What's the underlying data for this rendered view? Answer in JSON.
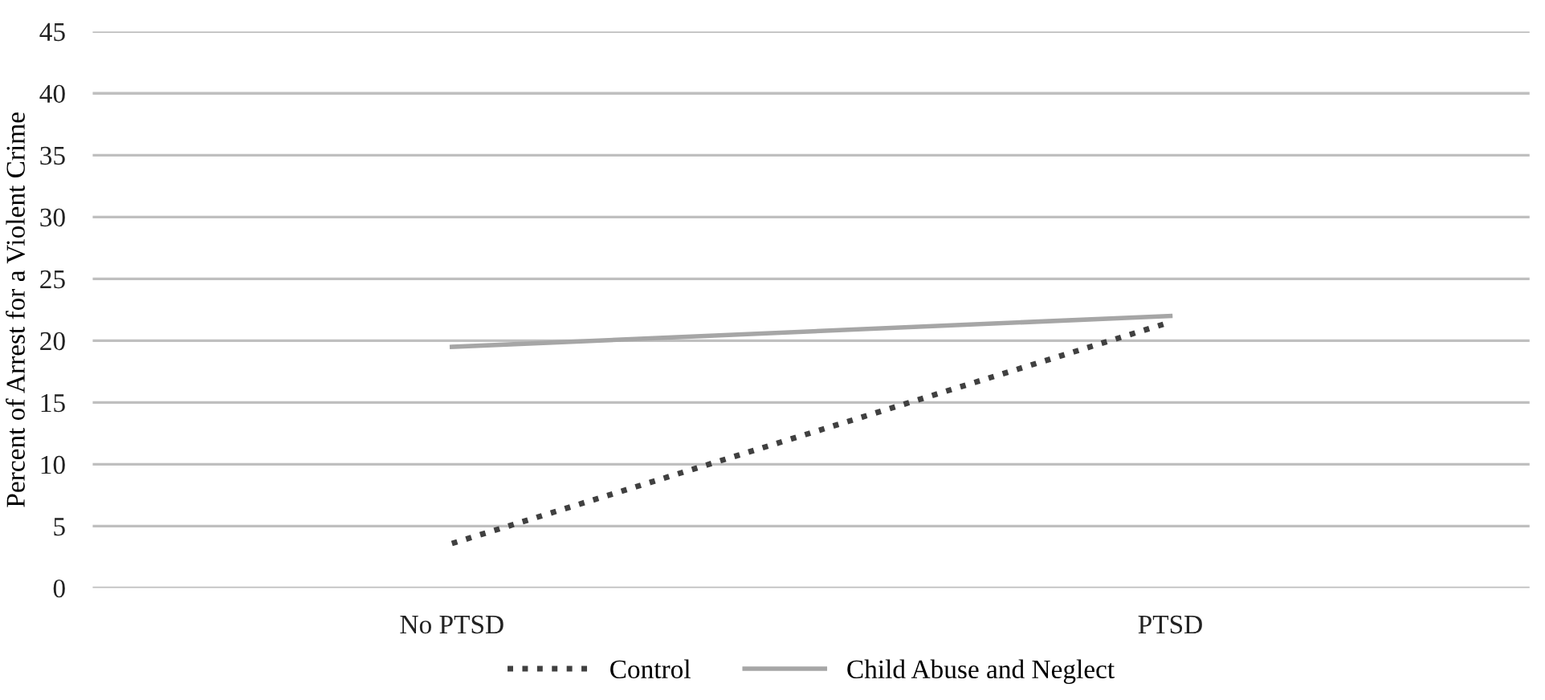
{
  "chart_data": {
    "type": "line",
    "ylabel": "Percent of Arrest for a Violent Crime",
    "categories": [
      "No PTSD",
      "PTSD"
    ],
    "series": [
      {
        "name": "Control",
        "color": "#404040",
        "values": [
          3.6,
          21.5
        ],
        "line_style": "dotted"
      },
      {
        "name": "Child Abuse and Neglect",
        "color": "#a6a6a6",
        "values": [
          19.5,
          22
        ],
        "line_style": "solid"
      }
    ],
    "ylim": [
      0,
      45
    ],
    "yticks": [
      0,
      5,
      10,
      15,
      20,
      25,
      30,
      35,
      40,
      45
    ],
    "grid": "y",
    "legend": "bottom",
    "marker": "none"
  }
}
